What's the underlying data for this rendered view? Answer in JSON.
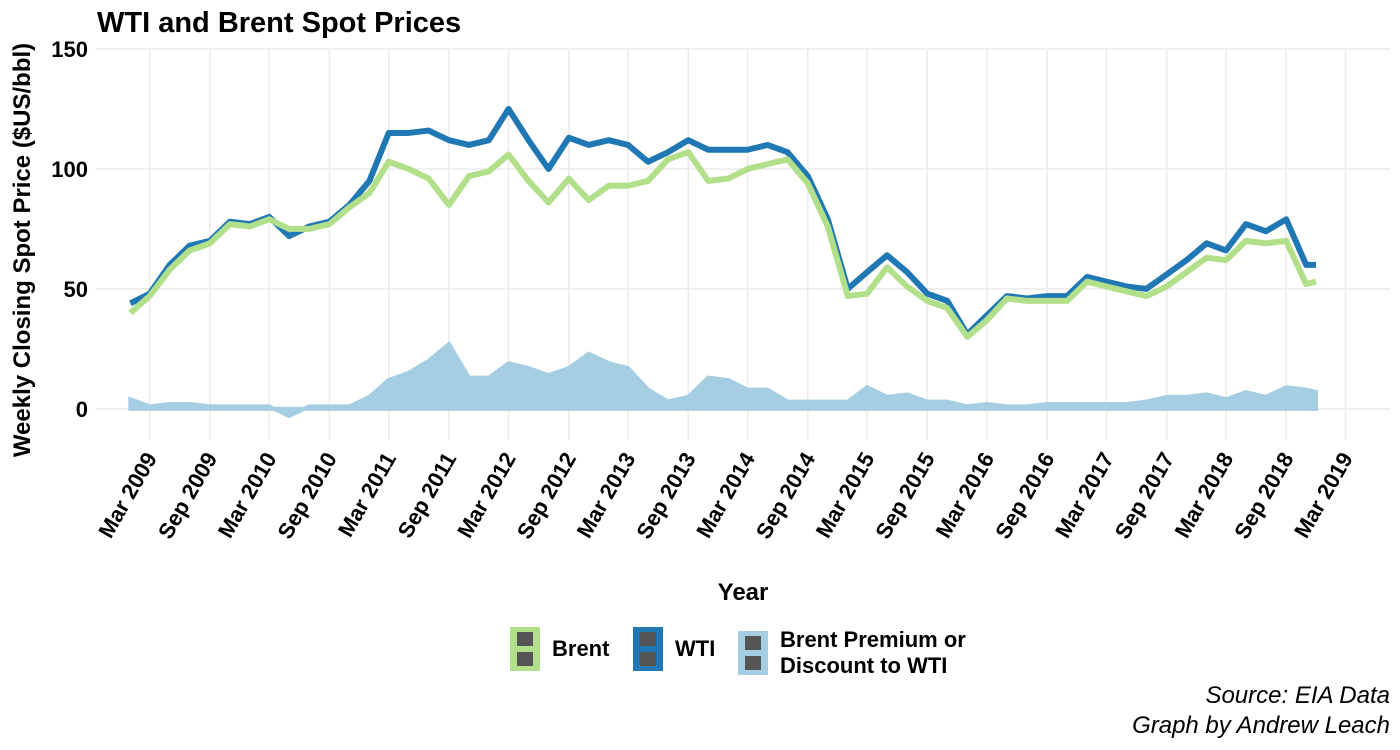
{
  "chart_data": {
    "type": "line",
    "title": "WTI and Brent Spot Prices",
    "x_label": "Year",
    "y_label": "Weekly Closing Spot Price ($US/bbl)",
    "source": "Source: EIA Data",
    "credit": "Graph by Andrew Leach",
    "x": [
      "2009-01",
      "2009-03",
      "2009-05",
      "2009-07",
      "2009-09",
      "2009-11",
      "2010-01",
      "2010-03",
      "2010-05",
      "2010-07",
      "2010-09",
      "2010-11",
      "2011-01",
      "2011-03",
      "2011-05",
      "2011-07",
      "2011-09",
      "2011-11",
      "2012-01",
      "2012-03",
      "2012-05",
      "2012-07",
      "2012-09",
      "2012-11",
      "2013-01",
      "2013-03",
      "2013-05",
      "2013-07",
      "2013-09",
      "2013-11",
      "2014-01",
      "2014-03",
      "2014-05",
      "2014-07",
      "2014-09",
      "2014-11",
      "2015-01",
      "2015-03",
      "2015-05",
      "2015-07",
      "2015-09",
      "2015-11",
      "2016-01",
      "2016-03",
      "2016-05",
      "2016-07",
      "2016-09",
      "2016-11",
      "2017-01",
      "2017-03",
      "2017-05",
      "2017-07",
      "2017-09",
      "2017-11",
      "2018-01",
      "2018-03",
      "2018-05",
      "2018-07",
      "2018-09",
      "2018-11",
      "2018-12"
    ],
    "series": [
      {
        "name": "Brent",
        "color": "#b2df8a",
        "style": "line",
        "values": [
          40,
          47,
          58,
          66,
          69,
          77,
          76,
          79,
          75,
          75,
          77,
          84,
          90,
          103,
          100,
          96,
          85,
          97,
          99,
          106,
          95,
          86,
          96,
          87,
          93,
          93,
          95,
          104,
          107,
          95,
          96,
          100,
          102,
          104,
          94,
          76,
          47,
          48,
          59,
          51,
          45,
          42,
          30,
          37,
          46,
          45,
          45,
          45,
          53,
          51,
          49,
          47,
          51,
          57,
          63,
          62,
          70,
          69,
          70,
          52,
          53
        ]
      },
      {
        "name": "WTI",
        "color": "#1f78b4",
        "style": "line",
        "values": [
          44,
          48,
          60,
          68,
          70,
          78,
          77,
          80,
          72,
          76,
          78,
          85,
          95,
          115,
          115,
          116,
          112,
          110,
          112,
          125,
          112,
          100,
          113,
          110,
          112,
          110,
          103,
          107,
          112,
          108,
          108,
          108,
          110,
          107,
          97,
          79,
          50,
          57,
          64,
          57,
          48,
          45,
          31,
          39,
          47,
          46,
          47,
          47,
          55,
          53,
          51,
          50,
          56,
          62,
          69,
          66,
          77,
          74,
          79,
          60,
          60
        ]
      },
      {
        "name": "Brent Premium or Discount to WTI",
        "color": "#a6cee3",
        "style": "area",
        "values": [
          4,
          1,
          2,
          2,
          1,
          1,
          1,
          1,
          -3,
          1,
          1,
          1,
          5,
          12,
          15,
          20,
          27,
          13,
          13,
          19,
          17,
          14,
          17,
          23,
          19,
          17,
          8,
          3,
          5,
          13,
          12,
          8,
          8,
          3,
          3,
          3,
          3,
          9,
          5,
          6,
          3,
          3,
          1,
          2,
          1,
          1,
          2,
          2,
          2,
          2,
          2,
          3,
          5,
          5,
          6,
          4,
          7,
          5,
          9,
          8,
          7
        ]
      }
    ],
    "xlim": [
      "2008-09-15",
      "2019-07-15"
    ],
    "xticks": [
      {
        "value": "2009-03-01",
        "label": "Mar 2009"
      },
      {
        "value": "2009-09-01",
        "label": "Sep 2009"
      },
      {
        "value": "2010-03-01",
        "label": "Mar 2010"
      },
      {
        "value": "2010-09-01",
        "label": "Sep 2010"
      },
      {
        "value": "2011-03-01",
        "label": "Mar 2011"
      },
      {
        "value": "2011-09-01",
        "label": "Sep 2011"
      },
      {
        "value": "2012-03-01",
        "label": "Mar 2012"
      },
      {
        "value": "2012-09-01",
        "label": "Sep 2012"
      },
      {
        "value": "2013-03-01",
        "label": "Mar 2013"
      },
      {
        "value": "2013-09-01",
        "label": "Sep 2013"
      },
      {
        "value": "2014-03-01",
        "label": "Mar 2014"
      },
      {
        "value": "2014-09-01",
        "label": "Sep 2014"
      },
      {
        "value": "2015-03-01",
        "label": "Mar 2015"
      },
      {
        "value": "2015-09-01",
        "label": "Sep 2015"
      },
      {
        "value": "2016-03-01",
        "label": "Mar 2016"
      },
      {
        "value": "2016-09-01",
        "label": "Sep 2016"
      },
      {
        "value": "2017-03-01",
        "label": "Mar 2017"
      },
      {
        "value": "2017-09-01",
        "label": "Sep 2017"
      },
      {
        "value": "2018-03-01",
        "label": "Mar 2018"
      },
      {
        "value": "2018-09-01",
        "label": "Sep 2018"
      },
      {
        "value": "2019-03-01",
        "label": "Mar 2019"
      }
    ],
    "ylim": [
      -13,
      150
    ],
    "yticks": [
      0,
      50,
      100,
      150
    ],
    "grid": true,
    "legend": "bottom"
  }
}
